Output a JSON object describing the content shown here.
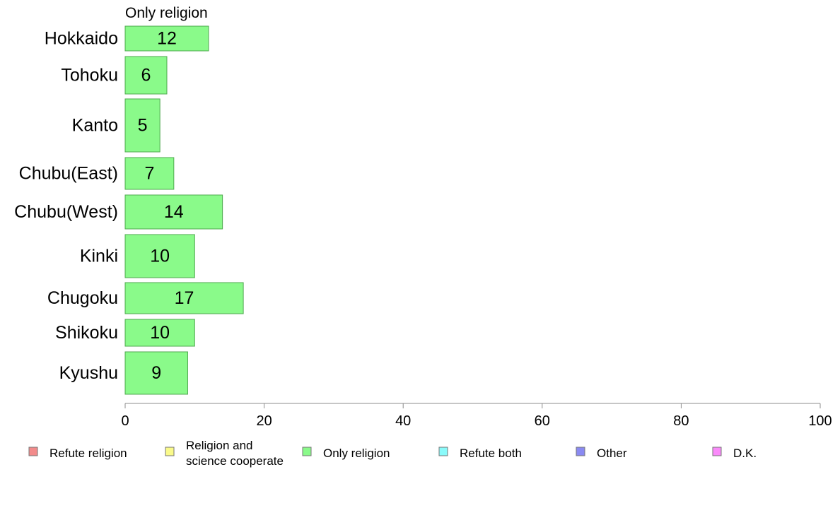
{
  "chart_data": {
    "type": "bar",
    "orientation": "horizontal",
    "panel_title": "Only religion",
    "categories": [
      "Hokkaido",
      "Tohoku",
      "Kanto",
      "Chubu(East)",
      "Chubu(West)",
      "Kinki",
      "Chugoku",
      "Shikoku",
      "Kyushu"
    ],
    "values": [
      12,
      6,
      5,
      7,
      14,
      10,
      17,
      10,
      9
    ],
    "value_labels": [
      "12",
      "6",
      "5",
      "7",
      "14",
      "10",
      "17",
      "10",
      "9"
    ],
    "xlim": [
      0,
      100
    ],
    "x_ticks": [
      "0",
      "20",
      "40",
      "60",
      "80",
      "100"
    ],
    "grid": false,
    "legend_position": "bottom",
    "legend": [
      {
        "label": "Refute religion",
        "color": "#f28b8b"
      },
      {
        "label": "Religion and",
        "label_line2": "science cooperate",
        "color": "#fafa8a"
      },
      {
        "label": "Only religion",
        "color": "#8afa8a"
      },
      {
        "label": "Refute both",
        "color": "#8afafa"
      },
      {
        "label": "Other",
        "color": "#8a8af2"
      },
      {
        "label": "D.K.",
        "color": "#fa8afa"
      }
    ],
    "bar_color": "#8afa8a",
    "bar_edge_color": "#4fa84f"
  }
}
